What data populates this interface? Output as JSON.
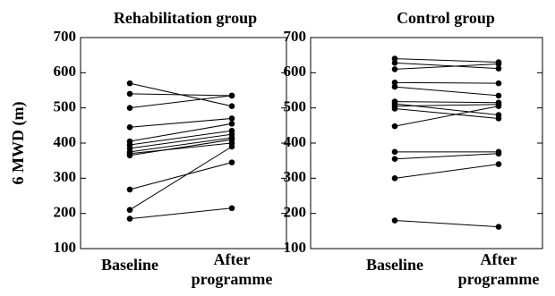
{
  "ylabel": "6 MWD (m)",
  "chart_data": [
    {
      "type": "line",
      "title": "Rehabilitation group",
      "categories": [
        "Baseline",
        "After programme"
      ],
      "ylim": [
        100,
        700
      ],
      "yticks": [
        100,
        200,
        300,
        400,
        500,
        600,
        700
      ],
      "grid": false,
      "pairs": [
        [
          570,
          505
        ],
        [
          540,
          535
        ],
        [
          500,
          535
        ],
        [
          445,
          470
        ],
        [
          405,
          455
        ],
        [
          395,
          435
        ],
        [
          385,
          425
        ],
        [
          375,
          415
        ],
        [
          370,
          400
        ],
        [
          365,
          410
        ],
        [
          268,
          345
        ],
        [
          210,
          390
        ],
        [
          185,
          215
        ]
      ]
    },
    {
      "type": "line",
      "title": "Control group",
      "categories": [
        "Baseline",
        "After programme"
      ],
      "ylim": [
        100,
        700
      ],
      "yticks": [
        100,
        200,
        300,
        400,
        500,
        600,
        700
      ],
      "grid": false,
      "pairs": [
        [
          640,
          630
        ],
        [
          628,
          612
        ],
        [
          610,
          625
        ],
        [
          572,
          570
        ],
        [
          560,
          535
        ],
        [
          518,
          515
        ],
        [
          512,
          480
        ],
        [
          505,
          510
        ],
        [
          498,
          470
        ],
        [
          448,
          505
        ],
        [
          375,
          375
        ],
        [
          355,
          370
        ],
        [
          300,
          340
        ],
        [
          180,
          162
        ]
      ]
    }
  ]
}
